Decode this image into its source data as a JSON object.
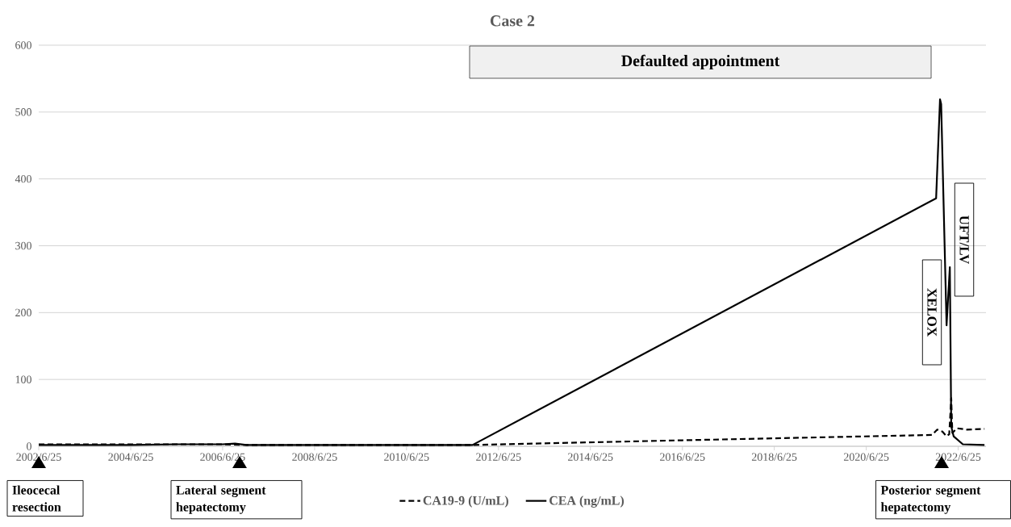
{
  "chart_data": {
    "type": "line",
    "title": "Case 2",
    "xlim": [
      "2002-06-25",
      "2023-02-01"
    ],
    "xticks": [
      {
        "value": "2002-06-25",
        "label": "2002/6/25"
      },
      {
        "value": "2004-06-25",
        "label": "2004/6/25"
      },
      {
        "value": "2006-06-25",
        "label": "2006/6/25"
      },
      {
        "value": "2008-06-25",
        "label": "2008/6/25"
      },
      {
        "value": "2010-06-25",
        "label": "2010/6/25"
      },
      {
        "value": "2012-06-25",
        "label": "2012/6/25"
      },
      {
        "value": "2014-06-25",
        "label": "2014/6/25"
      },
      {
        "value": "2016-06-25",
        "label": "2016/6/25"
      },
      {
        "value": "2018-06-25",
        "label": "2018/6/25"
      },
      {
        "value": "2020-06-25",
        "label": "2020/6/25"
      },
      {
        "value": "2022-06-25",
        "label": "2022/6/25"
      }
    ],
    "ylim": [
      0,
      600
    ],
    "yticks": [
      0,
      100,
      200,
      300,
      400,
      500,
      600
    ],
    "grid": "y",
    "legend": "bottom",
    "marker": "none",
    "series": [
      {
        "name": "CA19-9 (U/mL)",
        "color": "#000000",
        "line_style": "dashed",
        "x": [
          "2002-06-25",
          "2004-06-25",
          "2006-06-25",
          "2007-01-01",
          "2011-12-01",
          "2016-06-25",
          "2021-12-01",
          "2022-01-10",
          "2022-02-20",
          "2022-03-25",
          "2022-04-15",
          "2022-05-01",
          "2022-05-10",
          "2022-06-15",
          "2022-09-01",
          "2023-01-20"
        ],
        "values": [
          3,
          3,
          3,
          2,
          2,
          9,
          17,
          25,
          22,
          15,
          18,
          72,
          20,
          27,
          25,
          26
        ]
      },
      {
        "name": "CEA (ng/mL)",
        "color": "#000000",
        "line_style": "solid",
        "x": [
          "2002-06-25",
          "2003-06-25",
          "2004-06-25",
          "2005-06-25",
          "2006-06-25",
          "2006-10-01",
          "2007-01-01",
          "2009-01-01",
          "2011-12-01",
          "2022-01-01",
          "2022-02-01",
          "2022-02-10",
          "2022-03-25",
          "2022-04-20",
          "2022-05-01",
          "2022-05-20",
          "2022-08-01",
          "2023-01-20"
        ],
        "values": [
          2,
          2,
          2,
          3,
          3,
          4,
          2,
          2,
          2,
          371,
          519,
          512,
          181,
          268,
          30,
          15,
          3,
          2
        ]
      }
    ],
    "annotations": [
      "Defaulted appointment",
      "XELOX",
      "UFT/LV",
      "Ileocecal resection",
      "Lateral segment hepatectomy",
      "Posterior segment hepatectomy"
    ]
  }
}
